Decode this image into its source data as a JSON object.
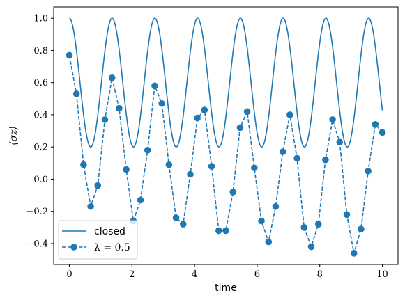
{
  "chart_data": {
    "type": "line",
    "title": "",
    "xlabel": "time",
    "ylabel": "⟨σz⟩",
    "xlim": [
      -0.5,
      10.5
    ],
    "ylim": [
      -0.53,
      1.07
    ],
    "xticks": [
      0,
      2,
      4,
      6,
      8,
      10
    ],
    "xtick_labels": [
      "0",
      "2",
      "4",
      "6",
      "8",
      "10"
    ],
    "yticks": [
      -0.4,
      -0.2,
      0.0,
      0.2,
      0.4,
      0.6,
      0.8,
      1.0
    ],
    "ytick_labels": [
      "−0.4",
      "−0.2",
      "0.0",
      "0.2",
      "0.4",
      "0.6",
      "0.8",
      "1.0"
    ],
    "grid": false,
    "legend_position": "lower-left",
    "color": "#1f77b4",
    "series": [
      {
        "name": "closed",
        "style": "solid",
        "function": "0.6 + 0.4*cos(4.6*t)",
        "x_range": [
          0,
          10
        ]
      },
      {
        "name": "λ = 0.5",
        "style": "dashed-with-markers",
        "x": [
          0.0,
          0.227,
          0.455,
          0.682,
          0.909,
          1.136,
          1.364,
          1.591,
          1.818,
          2.045,
          2.273,
          2.5,
          2.727,
          2.955,
          3.182,
          3.409,
          3.636,
          3.864,
          4.091,
          4.318,
          4.545,
          4.773,
          5.0,
          5.227,
          5.455,
          5.682,
          5.909,
          6.136,
          6.364,
          6.591,
          6.818,
          7.045,
          7.273,
          7.5,
          7.727,
          7.955,
          8.182,
          8.409,
          8.636,
          8.864,
          9.091,
          9.318,
          9.545,
          9.773,
          10.0
        ],
        "y": [
          0.77,
          0.53,
          0.09,
          -0.17,
          -0.04,
          0.37,
          0.63,
          0.44,
          0.06,
          -0.26,
          -0.13,
          0.18,
          0.58,
          0.47,
          0.09,
          -0.24,
          -0.28,
          0.03,
          0.38,
          0.43,
          0.08,
          -0.32,
          -0.32,
          -0.08,
          0.32,
          0.42,
          0.07,
          -0.26,
          -0.39,
          -0.17,
          0.17,
          0.4,
          0.13,
          -0.3,
          -0.42,
          -0.28,
          0.12,
          0.37,
          0.23,
          -0.22,
          -0.46,
          -0.31,
          0.05,
          0.34,
          0.29
        ]
      }
    ]
  }
}
